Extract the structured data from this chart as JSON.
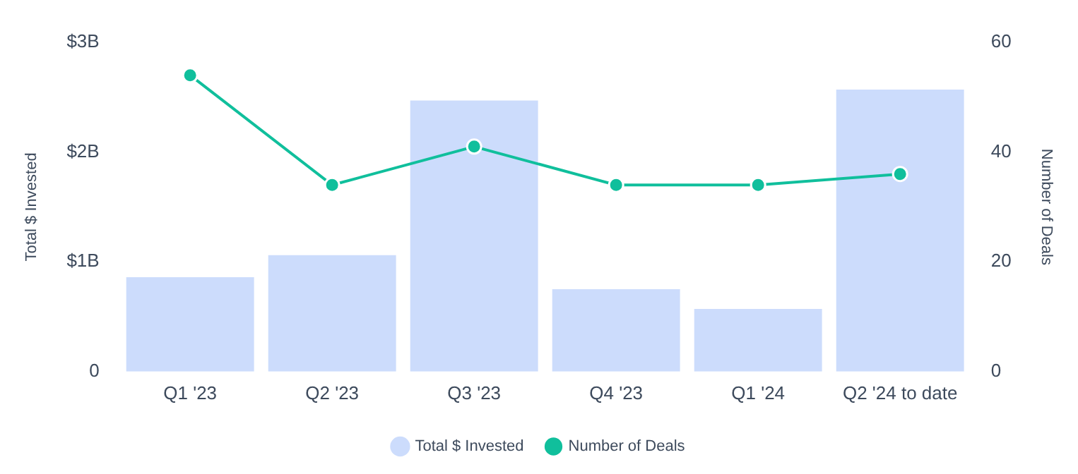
{
  "chart_data": {
    "type": "bar",
    "categories": [
      "Q1 '23",
      "Q2 '23",
      "Q3 '23",
      "Q4 '23",
      "Q1 '24",
      "Q2 '24 to date"
    ],
    "series": [
      {
        "name": "Total $ Invested",
        "color": "#ccdcfc",
        "values": [
          0.86,
          1.06,
          2.47,
          0.75,
          0.57,
          2.57
        ]
      },
      {
        "name": "Number of Deals",
        "type": "line",
        "axis": "y2",
        "color": "#10bf9c",
        "values": [
          54,
          34,
          41,
          34,
          34,
          36
        ]
      }
    ],
    "ylabel": "Total $ Invested",
    "y2label": "Number of Deals",
    "ylim": [
      0,
      3
    ],
    "yticks": [
      0,
      {
        "value": 1,
        "label": "$1B"
      },
      {
        "value": 2,
        "label": "$2B"
      },
      {
        "value": 3,
        "label": "$3B"
      }
    ],
    "y2lim": [
      0,
      60
    ],
    "y2ticks": [
      0,
      20,
      40,
      60
    ],
    "grid": false,
    "legend": "bottom",
    "marker": "circle"
  }
}
